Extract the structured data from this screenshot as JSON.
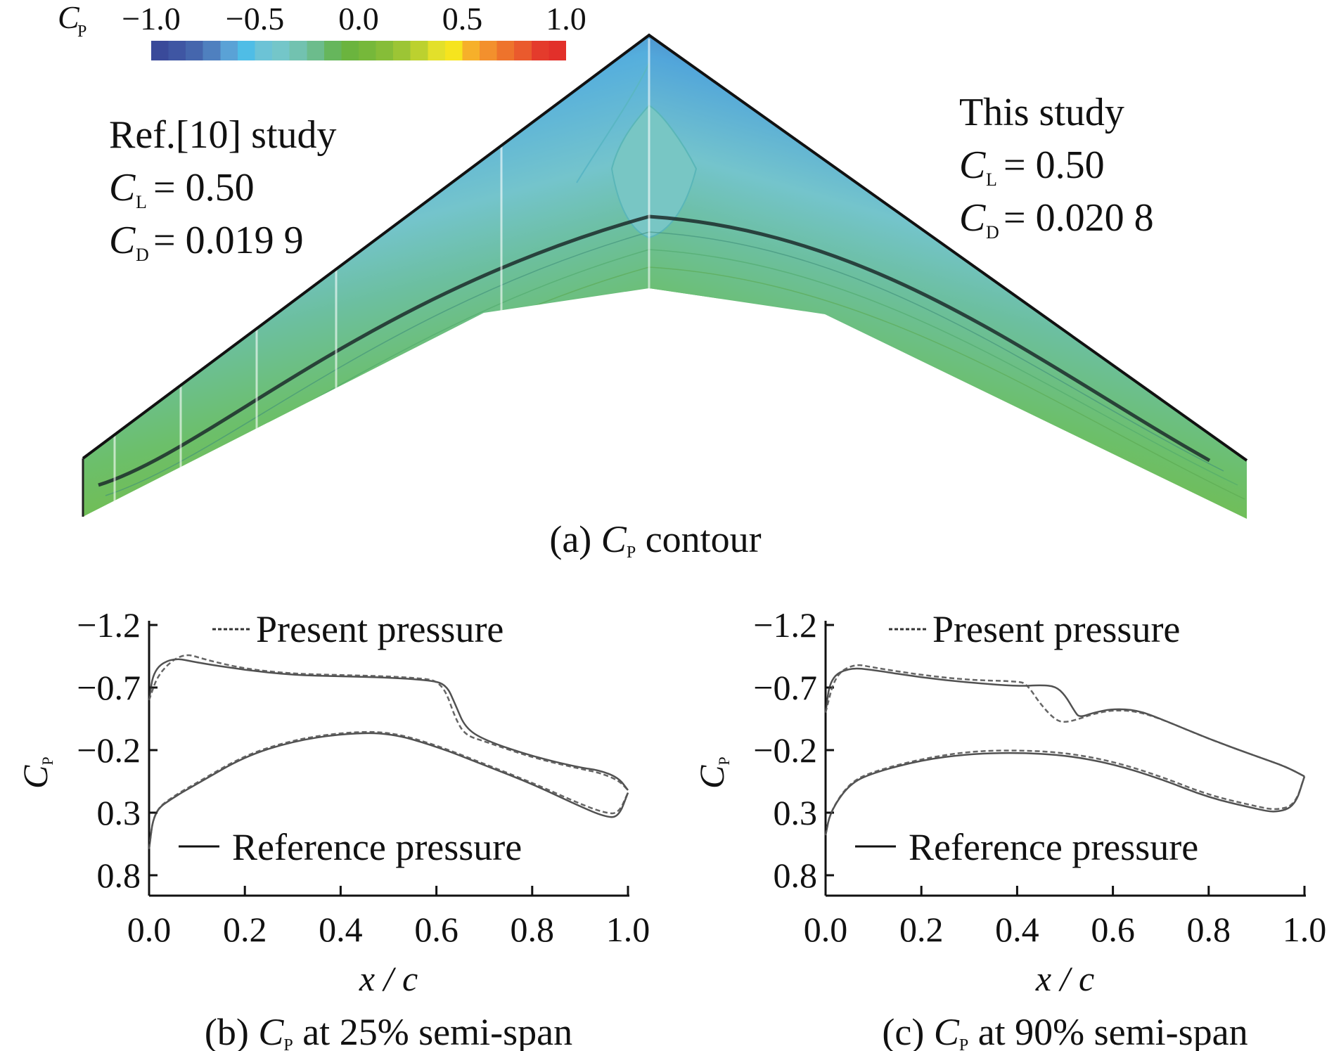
{
  "figure": {
    "panel_a": {
      "caption_prefix": "(a) ",
      "caption_symbol": "C",
      "caption_sub": "P",
      "caption_suffix": " contour",
      "colorbar": {
        "label_symbol": "C",
        "label_sub": "P",
        "ticks": [
          "−1.0",
          "−0.5",
          "0.0",
          "0.5",
          "1.0"
        ],
        "tick_values": [
          -1.0,
          -0.5,
          0.0,
          0.5,
          1.0
        ],
        "range": [
          -1.0,
          1.0
        ],
        "colors": [
          "#3a4a9a",
          "#3f56a3",
          "#4566ad",
          "#4f80bf",
          "#5aa2d6",
          "#4fbde6",
          "#6cc3d6",
          "#74c6c9",
          "#72c2b0",
          "#6cbc8c",
          "#66b65c",
          "#6bb43e",
          "#76b83a",
          "#86bd38",
          "#9cc535",
          "#bcd12f",
          "#e3e02a",
          "#f6e41e",
          "#f6b02a",
          "#f3902d",
          "#ee732c",
          "#ea5a2d",
          "#e43b2c",
          "#e2302a"
        ]
      },
      "left_annotation": {
        "title": "Ref.[10] study",
        "cl_symbol": "C",
        "cl_sub": "L",
        "cl_value": " = 0.50",
        "cd_symbol": "C",
        "cd_sub": "D",
        "cd_value": " = 0.019 9"
      },
      "right_annotation": {
        "title": "This study",
        "cl_symbol": "C",
        "cl_sub": "L",
        "cl_value": " = 0.50",
        "cd_symbol": "C",
        "cd_sub": "D",
        "cd_value": " = 0.020 8"
      },
      "contour_colors": {
        "leading_edge_suction": "#3d58a6",
        "mid_suction": "#55aedd",
        "plateau": "#74c4cc",
        "aft": "#6cbf6a",
        "trailing_edge": "#78bb3a",
        "shock_line": "#1a2a2a"
      }
    }
  },
  "chart_data": [
    {
      "type": "line",
      "panel": "b",
      "caption_prefix": "(b) ",
      "caption_symbol": "C",
      "caption_sub": "P",
      "caption_suffix": " at 25% semi-span",
      "xlabel": "x / c",
      "ylabel_symbol": "C",
      "ylabel_sub": "P",
      "xlim": [
        0.0,
        1.0
      ],
      "ylim": [
        -1.2,
        0.8
      ],
      "y_inverted": true,
      "xticks": [
        "0.0",
        "0.2",
        "0.4",
        "0.6",
        "0.8",
        "1.0"
      ],
      "xtick_values": [
        0.0,
        0.2,
        0.4,
        0.6,
        0.8,
        1.0
      ],
      "yticks": [
        "−1.2",
        "−0.7",
        "−0.2",
        "0.3",
        "0.8"
      ],
      "ytick_values": [
        -1.2,
        -0.7,
        -0.2,
        0.3,
        0.8
      ],
      "legend": [
        {
          "label": "Present pressure",
          "style": "dashed",
          "placement": "top"
        },
        {
          "label": "Reference pressure",
          "style": "solid",
          "placement": "bottom"
        }
      ],
      "series": [
        {
          "name": "Reference pressure (upper)",
          "style": "solid",
          "x": [
            0.0,
            0.01,
            0.05,
            0.1,
            0.2,
            0.3,
            0.4,
            0.5,
            0.58,
            0.62,
            0.64,
            0.66,
            0.7,
            0.8,
            0.9,
            0.94,
            0.98,
            1.0
          ],
          "y": [
            -0.6,
            -0.85,
            -0.94,
            -0.9,
            -0.84,
            -0.8,
            -0.79,
            -0.78,
            -0.76,
            -0.73,
            -0.56,
            -0.38,
            -0.28,
            -0.15,
            -0.06,
            -0.04,
            0.02,
            0.12
          ]
        },
        {
          "name": "Present pressure (upper)",
          "style": "dashed",
          "x": [
            0.0,
            0.02,
            0.07,
            0.12,
            0.2,
            0.3,
            0.4,
            0.5,
            0.58,
            0.6,
            0.62,
            0.64,
            0.66,
            0.7,
            0.8,
            0.9,
            0.94,
            0.98,
            1.0
          ],
          "y": [
            -0.6,
            -0.82,
            -0.98,
            -0.92,
            -0.85,
            -0.81,
            -0.8,
            -0.79,
            -0.77,
            -0.75,
            -0.67,
            -0.45,
            -0.32,
            -0.27,
            -0.14,
            -0.05,
            -0.02,
            0.04,
            0.12
          ]
        },
        {
          "name": "Reference pressure (lower)",
          "style": "solid",
          "x": [
            0.0,
            0.01,
            0.05,
            0.1,
            0.2,
            0.3,
            0.4,
            0.5,
            0.6,
            0.7,
            0.8,
            0.9,
            0.95,
            0.98,
            1.0
          ],
          "y": [
            0.59,
            0.29,
            0.18,
            0.07,
            -0.15,
            -0.27,
            -0.33,
            -0.34,
            -0.23,
            -0.08,
            0.07,
            0.25,
            0.33,
            0.34,
            0.14
          ]
        },
        {
          "name": "Present pressure (lower)",
          "style": "dashed",
          "x": [
            0.0,
            0.01,
            0.05,
            0.1,
            0.2,
            0.3,
            0.4,
            0.5,
            0.6,
            0.7,
            0.8,
            0.9,
            0.95,
            0.98,
            1.0
          ],
          "y": [
            0.59,
            0.29,
            0.17,
            0.06,
            -0.16,
            -0.28,
            -0.34,
            -0.35,
            -0.24,
            -0.09,
            0.06,
            0.23,
            0.3,
            0.31,
            0.14
          ]
        }
      ]
    },
    {
      "type": "line",
      "panel": "c",
      "caption_prefix": "(c) ",
      "caption_symbol": "C",
      "caption_sub": "P",
      "caption_suffix": " at 90% semi-span",
      "xlabel": "x / c",
      "ylabel_symbol": "C",
      "ylabel_sub": "P",
      "xlim": [
        0.0,
        1.0
      ],
      "ylim": [
        -1.2,
        0.8
      ],
      "y_inverted": true,
      "xticks": [
        "0.0",
        "0.2",
        "0.4",
        "0.6",
        "0.8",
        "1.0"
      ],
      "xtick_values": [
        0.0,
        0.2,
        0.4,
        0.6,
        0.8,
        1.0
      ],
      "yticks": [
        "−1.2",
        "−0.7",
        "−0.2",
        "0.3",
        "0.8"
      ],
      "ytick_values": [
        -1.2,
        -0.7,
        -0.2,
        0.3,
        0.8
      ],
      "legend": [
        {
          "label": "Present pressure",
          "style": "dashed",
          "placement": "top"
        },
        {
          "label": "Reference pressure",
          "style": "solid",
          "placement": "bottom"
        }
      ],
      "series": [
        {
          "name": "Reference pressure (upper)",
          "style": "solid",
          "x": [
            0.0,
            0.01,
            0.05,
            0.1,
            0.2,
            0.3,
            0.4,
            0.45,
            0.48,
            0.5,
            0.52,
            0.53,
            0.56,
            0.6,
            0.65,
            0.7,
            0.8,
            0.9,
            0.96,
            1.0
          ],
          "y": [
            -0.5,
            -0.78,
            -0.86,
            -0.84,
            -0.78,
            -0.74,
            -0.71,
            -0.72,
            -0.71,
            -0.64,
            -0.51,
            -0.46,
            -0.5,
            -0.53,
            -0.52,
            -0.45,
            -0.29,
            -0.15,
            -0.07,
            0.01
          ]
        },
        {
          "name": "Present pressure (upper)",
          "style": "dashed",
          "x": [
            0.0,
            0.02,
            0.06,
            0.1,
            0.2,
            0.3,
            0.4,
            0.42,
            0.45,
            0.48,
            0.5,
            0.53,
            0.56,
            0.6,
            0.65,
            0.7,
            0.8,
            0.9,
            0.96,
            1.0
          ],
          "y": [
            -0.5,
            -0.8,
            -0.89,
            -0.86,
            -0.8,
            -0.76,
            -0.75,
            -0.73,
            -0.56,
            -0.44,
            -0.42,
            -0.45,
            -0.49,
            -0.52,
            -0.51,
            -0.45,
            -0.29,
            -0.15,
            -0.07,
            0.01
          ]
        },
        {
          "name": "Reference pressure (lower)",
          "style": "solid",
          "x": [
            0.0,
            0.01,
            0.05,
            0.1,
            0.2,
            0.3,
            0.4,
            0.5,
            0.6,
            0.7,
            0.8,
            0.9,
            0.94,
            0.98,
            1.0
          ],
          "y": [
            0.48,
            0.29,
            0.07,
            -0.02,
            -0.12,
            -0.17,
            -0.18,
            -0.16,
            -0.09,
            0.03,
            0.18,
            0.27,
            0.3,
            0.25,
            0.01
          ]
        },
        {
          "name": "Present pressure (lower)",
          "style": "dashed",
          "x": [
            0.0,
            0.01,
            0.05,
            0.1,
            0.2,
            0.3,
            0.4,
            0.5,
            0.6,
            0.7,
            0.8,
            0.9,
            0.94,
            0.98,
            1.0
          ],
          "y": [
            0.48,
            0.29,
            0.06,
            -0.03,
            -0.13,
            -0.19,
            -0.2,
            -0.18,
            -0.11,
            0.01,
            0.16,
            0.25,
            0.28,
            0.24,
            0.01
          ]
        }
      ]
    }
  ]
}
